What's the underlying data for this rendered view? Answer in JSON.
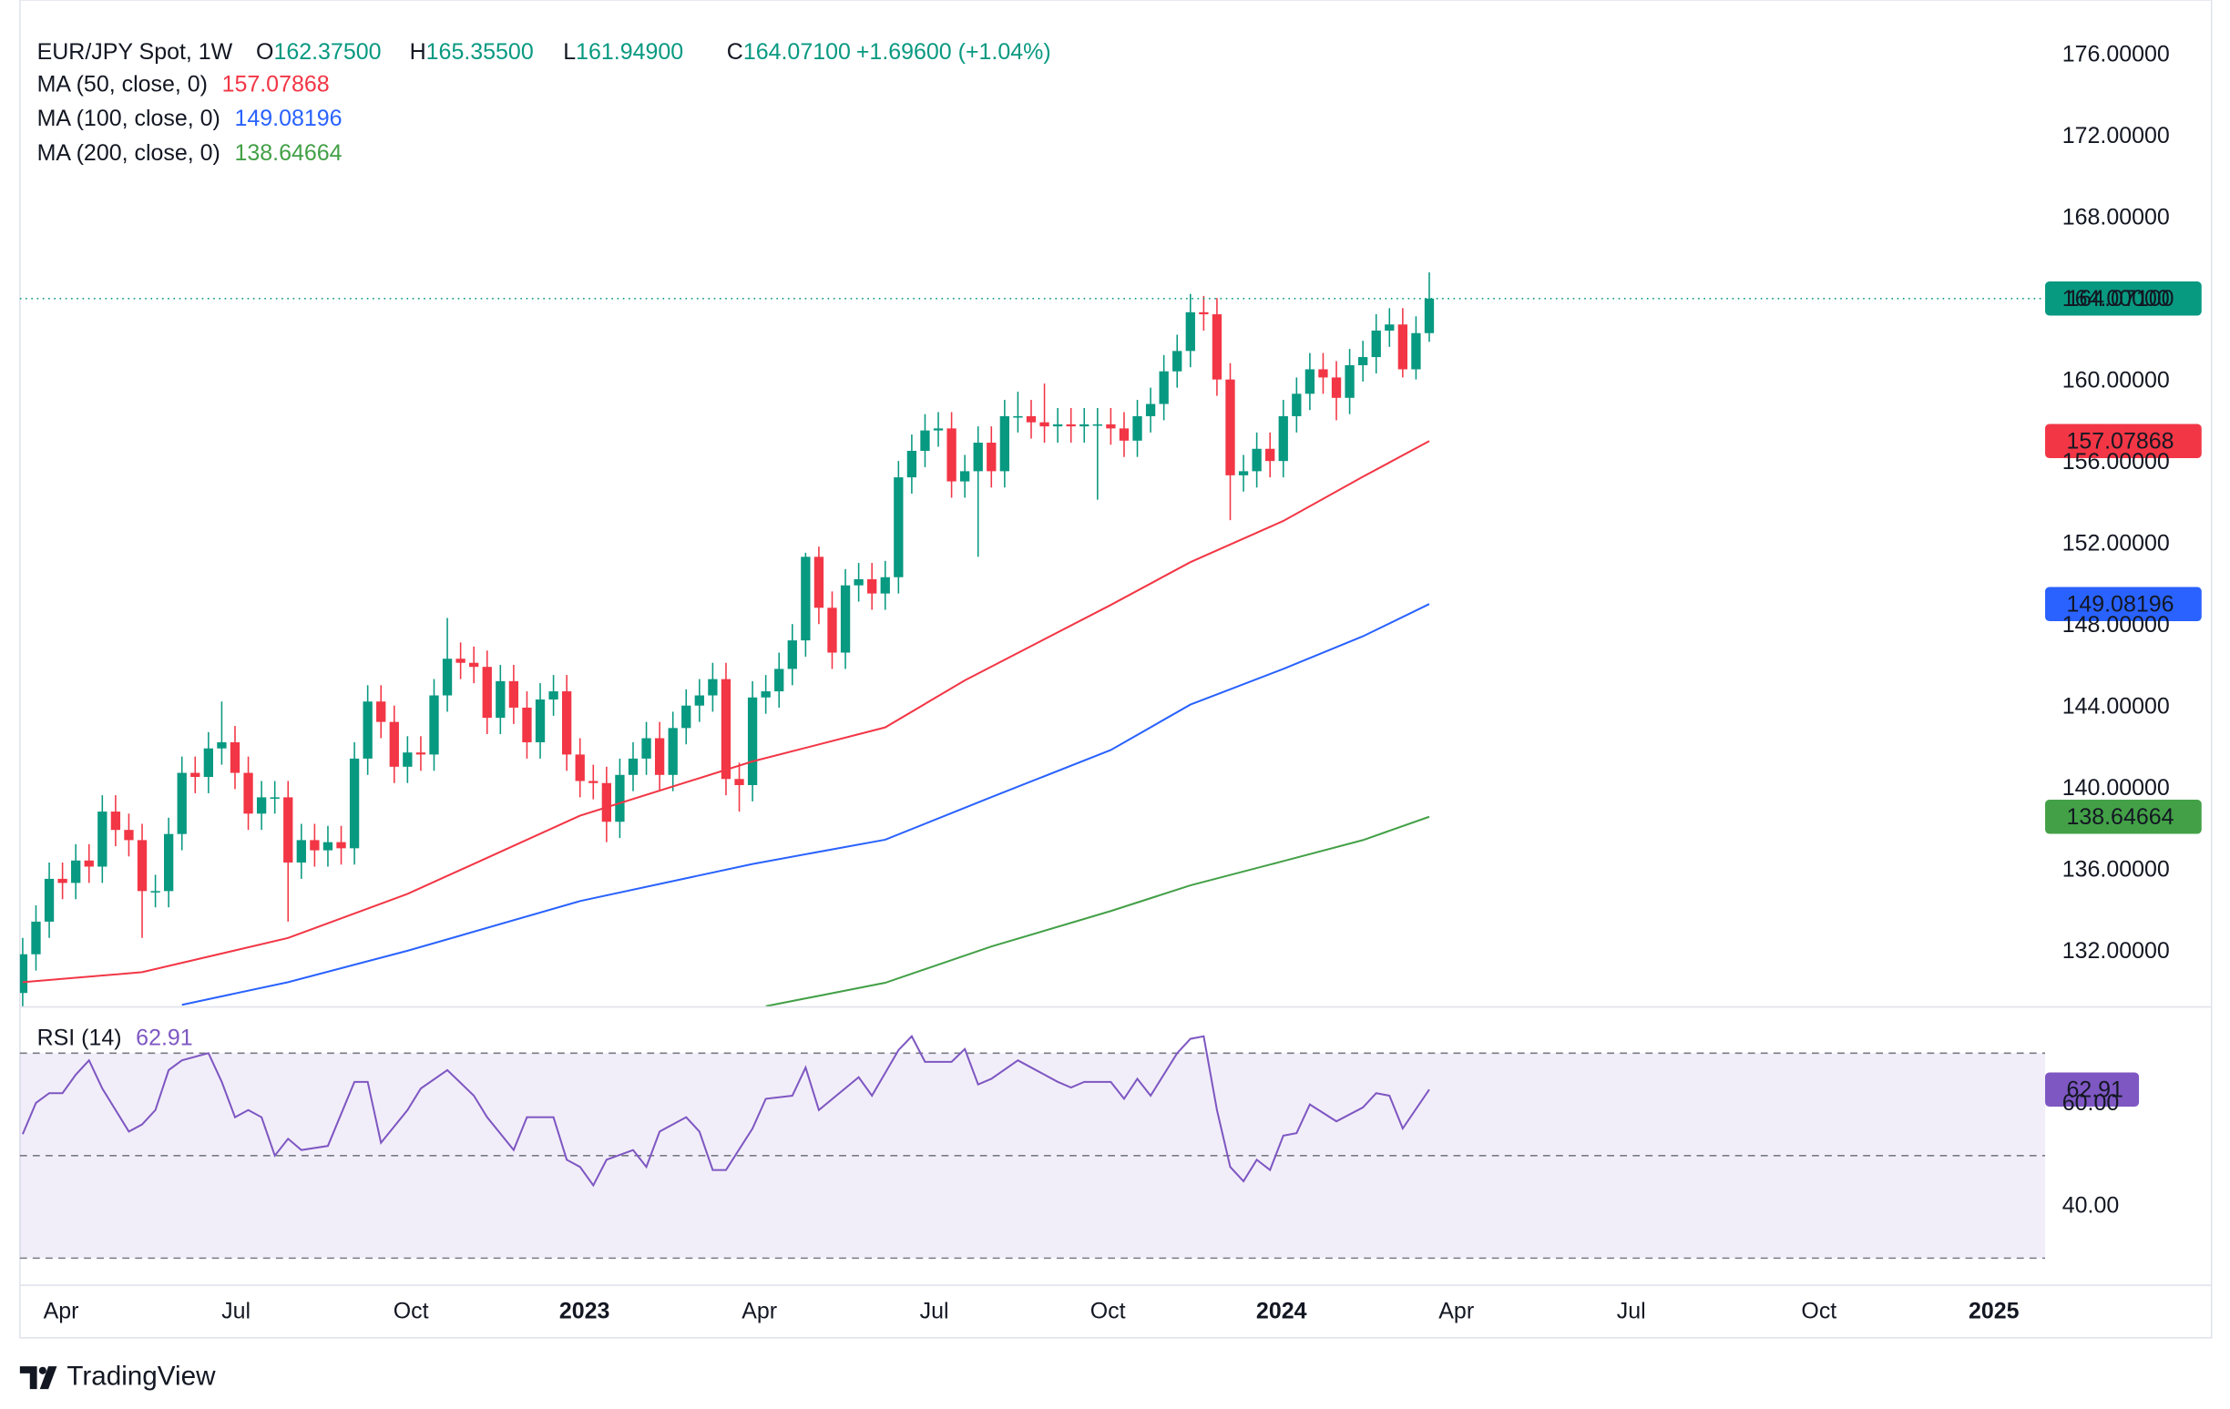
{
  "header": {
    "symbol": "EUR/JPY Spot, 1W",
    "fields": [
      {
        "letter": "O",
        "value": "162.37500"
      },
      {
        "letter": "H",
        "value": "165.35500"
      },
      {
        "letter": "L",
        "value": "161.94900"
      },
      {
        "letter": "C",
        "value": "164.07100"
      }
    ],
    "change": "+1.69600 (+1.04%)"
  },
  "footer": {
    "brand": "TradingView"
  },
  "chart_data": [
    {
      "type": "candlestick",
      "up_color": "#089981",
      "down_color": "#f23645",
      "x": [
        0,
        1,
        2,
        3,
        4,
        5,
        6,
        7,
        8,
        9,
        10,
        11,
        12,
        13,
        14,
        15,
        16,
        17,
        18,
        19,
        20,
        21,
        22,
        23,
        24,
        25,
        26,
        27,
        28,
        29,
        30,
        31,
        32,
        33,
        34,
        35,
        36,
        37,
        38,
        39,
        40,
        41,
        42,
        43,
        44,
        45,
        46,
        47,
        48,
        49,
        50,
        51,
        52,
        53,
        54,
        55,
        56,
        57,
        58,
        59,
        60,
        61,
        62,
        63,
        64,
        65,
        66,
        67,
        68,
        69,
        70,
        71,
        72,
        73,
        74,
        75,
        76,
        77,
        78,
        79,
        80,
        81,
        82,
        83,
        84,
        85,
        86,
        87,
        88,
        89,
        90,
        91,
        92,
        93,
        94,
        95,
        96,
        97,
        98,
        99,
        100,
        101,
        102,
        103,
        104,
        105,
        106
      ],
      "open": [
        130.0,
        131.9,
        133.5,
        135.6,
        135.4,
        136.5,
        136.2,
        138.9,
        138.0,
        137.5,
        135.0,
        135.0,
        137.8,
        140.8,
        140.6,
        142.0,
        142.3,
        140.8,
        138.8,
        139.6,
        139.6,
        136.4,
        137.5,
        137.0,
        137.4,
        137.1,
        141.5,
        144.3,
        143.3,
        141.1,
        141.8,
        141.7,
        144.6,
        146.4,
        146.2,
        146.0,
        143.5,
        145.3,
        144.0,
        142.3,
        144.4,
        144.8,
        141.7,
        140.4,
        140.3,
        138.4,
        140.7,
        141.5,
        142.5,
        140.7,
        143.0,
        144.1,
        144.6,
        145.4,
        140.5,
        140.2,
        144.5,
        144.8,
        145.9,
        147.3,
        151.4,
        148.9,
        146.7,
        150.0,
        150.3,
        149.6,
        150.4,
        155.3,
        156.6,
        157.6,
        157.7,
        155.1,
        155.6,
        157.0,
        155.6,
        158.3,
        158.3,
        158.0,
        157.8,
        157.9,
        157.8,
        157.9,
        157.9,
        157.7,
        157.1,
        158.3,
        158.9,
        160.5,
        161.5,
        163.4,
        163.3,
        160.1,
        155.4,
        155.6,
        156.7,
        156.1,
        158.3,
        159.4,
        160.6,
        160.2,
        159.2,
        160.8,
        161.2,
        162.5,
        162.8,
        160.6,
        162.375
      ],
      "high": [
        132.7,
        134.3,
        136.4,
        136.4,
        137.3,
        137.3,
        139.7,
        139.7,
        138.8,
        138.3,
        135.8,
        138.6,
        141.6,
        141.6,
        142.8,
        144.3,
        143.1,
        141.6,
        140.4,
        140.4,
        140.4,
        138.3,
        138.3,
        138.2,
        138.2,
        142.3,
        145.1,
        145.1,
        144.1,
        142.6,
        142.6,
        145.4,
        148.4,
        147.2,
        147.0,
        146.8,
        146.1,
        146.1,
        144.8,
        145.2,
        145.6,
        145.6,
        142.5,
        141.2,
        141.1,
        141.5,
        142.3,
        143.3,
        143.3,
        143.8,
        144.9,
        145.4,
        146.2,
        146.2,
        141.3,
        145.3,
        145.6,
        146.7,
        148.1,
        151.6,
        151.9,
        149.7,
        150.8,
        151.1,
        151.1,
        151.2,
        156.1,
        157.4,
        158.4,
        158.5,
        158.5,
        156.4,
        157.8,
        157.8,
        159.1,
        159.5,
        159.1,
        159.9,
        158.7,
        158.7,
        158.7,
        158.7,
        158.7,
        158.5,
        159.1,
        159.7,
        161.3,
        162.3,
        164.3,
        164.2,
        164.1,
        160.9,
        156.4,
        157.5,
        157.5,
        159.1,
        160.2,
        161.4,
        161.4,
        161.0,
        161.6,
        162.0,
        163.3,
        163.6,
        163.6,
        163.2,
        165.355
      ],
      "low": [
        129.2,
        131.1,
        132.7,
        134.6,
        134.6,
        135.4,
        135.4,
        137.2,
        136.7,
        132.7,
        134.2,
        134.2,
        137.0,
        139.8,
        139.8,
        141.2,
        140.0,
        138.0,
        138.0,
        138.8,
        133.5,
        135.6,
        136.2,
        136.2,
        136.3,
        136.3,
        140.7,
        142.5,
        140.3,
        140.3,
        140.9,
        140.9,
        143.8,
        145.4,
        145.2,
        142.7,
        142.7,
        143.2,
        141.5,
        141.5,
        143.6,
        140.9,
        139.6,
        139.5,
        137.4,
        137.6,
        139.9,
        140.7,
        139.9,
        139.9,
        142.2,
        143.3,
        143.8,
        139.7,
        138.9,
        139.4,
        143.7,
        144.0,
        145.1,
        146.5,
        148.1,
        145.9,
        145.9,
        149.2,
        148.8,
        148.8,
        149.6,
        154.5,
        155.8,
        156.8,
        154.3,
        154.3,
        151.4,
        154.8,
        154.8,
        157.5,
        157.2,
        157.0,
        157.0,
        157.0,
        157.0,
        154.2,
        156.9,
        156.3,
        156.3,
        157.5,
        158.1,
        159.7,
        160.7,
        162.5,
        159.3,
        153.2,
        154.6,
        154.8,
        155.3,
        155.3,
        157.5,
        158.6,
        159.4,
        158.1,
        158.4,
        160.0,
        160.4,
        161.7,
        160.2,
        160.1,
        161.949
      ],
      "close": [
        131.9,
        133.5,
        135.6,
        135.4,
        136.5,
        136.2,
        138.9,
        138.0,
        137.5,
        135.0,
        135.0,
        137.8,
        140.8,
        140.6,
        142.0,
        142.3,
        140.8,
        138.8,
        139.6,
        139.6,
        136.4,
        137.5,
        137.0,
        137.4,
        137.1,
        141.5,
        144.3,
        143.3,
        141.1,
        141.8,
        141.7,
        144.6,
        146.4,
        146.2,
        146.0,
        143.5,
        145.3,
        144.0,
        142.3,
        144.4,
        144.8,
        141.7,
        140.4,
        140.3,
        138.4,
        140.7,
        141.5,
        142.5,
        140.7,
        143.0,
        144.1,
        144.6,
        145.4,
        140.5,
        140.2,
        144.5,
        144.8,
        145.9,
        147.3,
        151.4,
        148.9,
        146.7,
        150.0,
        150.3,
        149.6,
        150.4,
        155.3,
        156.6,
        157.6,
        157.7,
        155.1,
        155.6,
        157.0,
        155.6,
        158.3,
        158.3,
        158.0,
        157.8,
        157.9,
        157.8,
        157.9,
        157.9,
        157.7,
        157.1,
        158.3,
        158.9,
        160.5,
        161.5,
        163.4,
        163.3,
        160.1,
        155.4,
        155.6,
        156.7,
        156.1,
        158.3,
        159.4,
        160.6,
        160.2,
        159.2,
        160.8,
        161.2,
        162.5,
        162.8,
        160.6,
        162.375,
        164.071
      ],
      "series": [
        {
          "name": "MA (50, close, 0)",
          "color": "#f23645",
          "x": [
            0,
            9,
            20,
            29,
            42,
            55,
            65,
            71,
            82,
            88,
            95,
            101,
            106
          ],
          "values": [
            130.53,
            131.02,
            132.7,
            134.86,
            138.7,
            141.36,
            143.03,
            145.34,
            149.04,
            151.14,
            153.16,
            155.33,
            157.07868
          ]
        },
        {
          "name": "MA (100, close, 0)",
          "color": "#2962ff",
          "x": [
            12,
            20,
            29,
            42,
            55,
            65,
            73,
            82,
            88,
            95,
            101,
            106
          ],
          "values": [
            129.42,
            130.53,
            132.07,
            134.51,
            136.33,
            137.52,
            139.61,
            141.92,
            144.15,
            145.9,
            147.5,
            149.08196
          ]
        },
        {
          "name": "MA (200, close, 0)",
          "color": "#43a047",
          "x": [
            56,
            65,
            73,
            82,
            88,
            95,
            101,
            106
          ],
          "values": [
            129.35,
            130.5,
            132.28,
            134.02,
            135.28,
            136.47,
            137.5,
            138.64664
          ]
        }
      ],
      "ylim": [
        129.35,
        178.72
      ],
      "yticks": [
        {
          "value": 132,
          "label": "132.00000"
        },
        {
          "value": 136,
          "label": "136.00000"
        },
        {
          "value": 140,
          "label": "140.00000"
        },
        {
          "value": 144,
          "label": "144.00000"
        },
        {
          "value": 148,
          "label": "148.00000"
        },
        {
          "value": 152,
          "label": "152.00000"
        },
        {
          "value": 156,
          "label": "156.00000"
        },
        {
          "value": 160,
          "label": "160.00000"
        },
        {
          "value": 164,
          "label": "164.00000"
        },
        {
          "value": 168,
          "label": "168.00000"
        },
        {
          "value": 172,
          "label": "172.00000"
        },
        {
          "value": 176,
          "label": "176.00000"
        }
      ],
      "grid": true
    },
    {
      "type": "line",
      "series": [
        {
          "name": "RSI (14)",
          "color": "#7e57c2",
          "x": [
            0,
            1,
            2,
            3,
            4,
            5,
            6,
            8,
            9,
            10,
            11,
            12,
            14,
            15,
            16,
            17,
            18,
            19,
            20,
            21,
            23,
            25,
            26,
            27,
            29,
            30,
            32,
            34,
            35,
            37,
            38,
            40,
            41,
            42,
            43,
            44,
            46,
            47,
            48,
            50,
            51,
            52,
            53,
            55,
            56,
            58,
            59,
            60,
            63,
            64,
            66,
            67,
            68,
            70,
            71,
            72,
            73,
            75,
            76,
            78,
            79,
            80,
            82,
            83,
            84,
            85,
            87,
            88,
            89,
            90,
            91,
            92,
            93,
            94,
            95,
            96,
            97,
            99,
            101,
            102,
            103,
            104,
            106
          ],
          "values": [
            54.2,
            60.3,
            62.2,
            62.2,
            65.8,
            68.6,
            63.1,
            54.7,
            56.1,
            58.9,
            66.7,
            68.6,
            70,
            64.4,
            57.5,
            58.9,
            57.5,
            50,
            53.3,
            51.1,
            51.9,
            64.4,
            64.4,
            52.5,
            58.9,
            63.1,
            66.7,
            61.7,
            57.5,
            51.1,
            57.5,
            57.5,
            49.2,
            47.8,
            44.2,
            49.2,
            51.1,
            47.8,
            54.7,
            57.5,
            54.7,
            47.2,
            47.2,
            55.3,
            61.1,
            61.7,
            67.2,
            58.9,
            65.3,
            61.7,
            70.6,
            73.3,
            68.3,
            68.3,
            70.8,
            63.9,
            65,
            68.6,
            67.2,
            64.4,
            63.3,
            64.4,
            64.4,
            61.1,
            65,
            61.7,
            70,
            72.8,
            73.3,
            58.9,
            47.8,
            45,
            49.2,
            47.2,
            53.9,
            54.4,
            60,
            56.7,
            59.4,
            62.2,
            61.7,
            55.3,
            62.91
          ]
        }
      ],
      "bands": [
        70,
        50,
        30
      ],
      "ylim": [
        24.72,
        78.33
      ],
      "yticks": [
        {
          "value": 40,
          "label": "40.00"
        },
        {
          "value": 60,
          "label": "60.00"
        }
      ],
      "xlim": [
        -0.21,
        152.41
      ],
      "xticks": [
        {
          "value": 2.89,
          "label": "Apr"
        },
        {
          "value": 16.08,
          "label": "Jul"
        },
        {
          "value": 29.26,
          "label": "Oct"
        },
        {
          "value": 42.34,
          "label": "2023"
        },
        {
          "value": 55.52,
          "label": "Apr"
        },
        {
          "value": 68.7,
          "label": "Jul"
        },
        {
          "value": 81.78,
          "label": "Oct"
        },
        {
          "value": 94.86,
          "label": "2024"
        },
        {
          "value": 108.04,
          "label": "Apr"
        },
        {
          "value": 121.22,
          "label": "Jul"
        },
        {
          "value": 135.37,
          "label": "Oct"
        },
        {
          "value": 148.55,
          "label": "2025"
        }
      ],
      "grid": true
    }
  ]
}
